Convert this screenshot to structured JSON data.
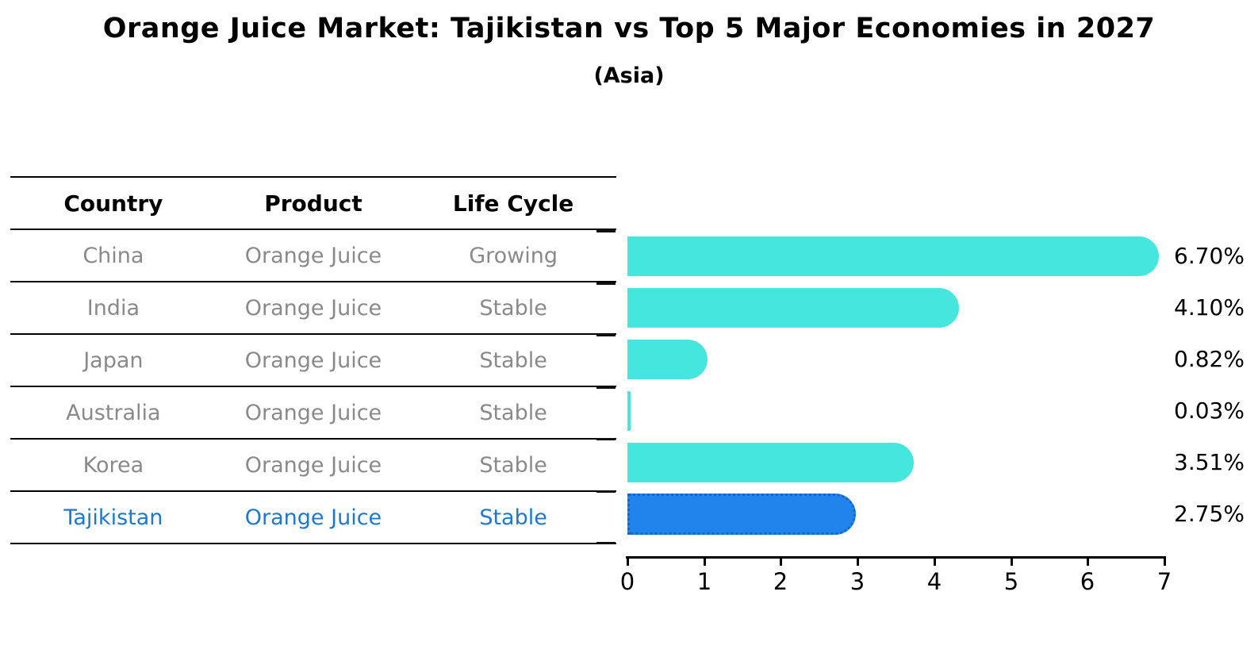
{
  "title": "Orange Juice Market: Tajikistan vs Top 5 Major Economies in 2027",
  "subtitle": "(Asia)",
  "table": {
    "headers": {
      "country": "Country",
      "product": "Product",
      "life_cycle": "Life Cycle"
    },
    "rows": [
      {
        "country": "China",
        "product": "Orange Juice",
        "life_cycle": "Growing",
        "highlighted": false
      },
      {
        "country": "India",
        "product": "Orange Juice",
        "life_cycle": "Stable",
        "highlighted": false
      },
      {
        "country": "Japan",
        "product": "Orange Juice",
        "life_cycle": "Stable",
        "highlighted": false
      },
      {
        "country": "Australia",
        "product": "Orange Juice",
        "life_cycle": "Stable",
        "highlighted": false
      },
      {
        "country": "Korea",
        "product": "Orange Juice",
        "life_cycle": "Stable",
        "highlighted": false
      },
      {
        "country": "Tajikistan",
        "product": "Orange Juice",
        "life_cycle": "Stable",
        "highlighted": true
      }
    ]
  },
  "chart_data": {
    "type": "bar",
    "orientation": "horizontal",
    "title": "Orange Juice Market: Tajikistan vs Top 5 Major Economies in 2027",
    "subtitle": "(Asia)",
    "categories": [
      "China",
      "India",
      "Japan",
      "Australia",
      "Korea",
      "Tajikistan"
    ],
    "values": [
      6.7,
      4.1,
      0.82,
      0.03,
      3.51,
      2.75
    ],
    "value_labels": [
      "6.70%",
      "4.10%",
      "0.82%",
      "0.03%",
      "3.51%",
      "2.75%"
    ],
    "xlabel": "",
    "ylabel": "",
    "xlim": [
      0,
      7
    ],
    "x_ticks": [
      0,
      1,
      2,
      3,
      4,
      5,
      6,
      7
    ],
    "grid": false,
    "legend_position": "none",
    "highlight_index": 5
  },
  "colors": {
    "bar_default": "#45e6de",
    "bar_highlight": "#2184ec",
    "bar_highlight_border": "#1565d0",
    "highlight_text": "#1f78ce",
    "table_text": "#8a8a8a",
    "header_text": "#000000",
    "axis": "#000000",
    "background": "#ffffff"
  }
}
